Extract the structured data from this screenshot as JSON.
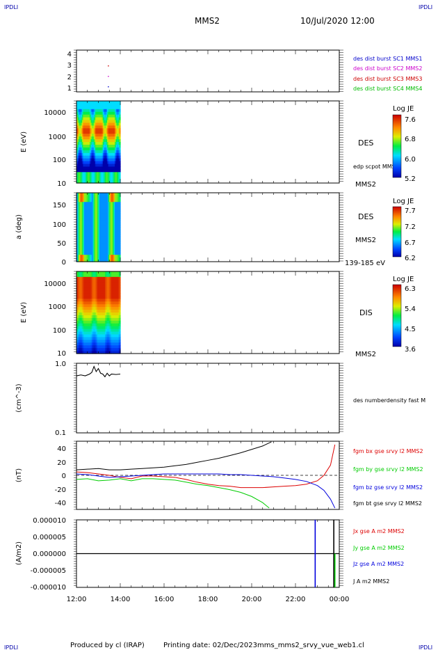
{
  "header": {
    "corner_tl": "IPDLI",
    "corner_tr": "IPDLI",
    "corner_bl": "IPDLI",
    "corner_br": "IPDLI",
    "title": "MMS2",
    "datetime": "10/Jul/2020 12:00"
  },
  "footer": {
    "produced": "Produced by cl (IRAP)",
    "printing": "Printing date: 02/Dec/2023",
    "file": "mms_mms2_srvy_vue_web1.cl"
  },
  "colors": {
    "mms1": "#0000cc",
    "mms2": "#cc00cc",
    "mms3": "#cc0000",
    "mms4": "#00bb00",
    "bx": "#dd0000",
    "by": "#00cc00",
    "bz": "#0000dd",
    "bt": "#000000"
  },
  "chart_data": [
    {
      "type": "scatter",
      "panel": "burst-availability",
      "ylim": [
        0.5,
        4.5
      ],
      "yticks": [
        "4",
        "3",
        "2",
        "1"
      ],
      "legend": [
        {
          "text": "des dist burst SC1 MMS1",
          "color": "#0000cc"
        },
        {
          "text": "des dist burst SC2 MMS2",
          "color": "#cc00cc"
        },
        {
          "text": "des dist burst SC3 MMS3",
          "color": "#cc0000"
        },
        {
          "text": "des dist burst SC4 MMS4",
          "color": "#00bb00"
        }
      ],
      "points": [
        {
          "x": 13.45,
          "y": 1
        },
        {
          "x": 13.45,
          "y": 2
        },
        {
          "x": 13.45,
          "y": 3
        }
      ]
    },
    {
      "type": "heatmap",
      "panel": "des-energy",
      "ylabel": "E (eV)",
      "yscale": "log",
      "ylim": [
        10,
        30000
      ],
      "yticks": [
        "10000",
        "1000",
        "100",
        "10"
      ],
      "data_xrange": [
        12.0,
        14.0
      ],
      "species": "DES",
      "extra_label": "edp scpot MMS2",
      "spacecraft": "MMS2",
      "colorbar": {
        "label": "Log JE",
        "ticks": [
          "7.6",
          "6.8",
          "6.0",
          "5.2"
        ]
      }
    },
    {
      "type": "heatmap",
      "panel": "des-pitch",
      "ylabel": "a (deg)",
      "ylim": [
        0,
        180
      ],
      "yticks": [
        "150",
        "100",
        "50",
        "0"
      ],
      "data_xrange": [
        12.0,
        14.0
      ],
      "species": "DES",
      "spacecraft": "MMS2",
      "energy_range": "139-185 eV",
      "colorbar": {
        "label": "Log JE",
        "ticks": [
          "7.7",
          "7.2",
          "6.7",
          "6.2"
        ]
      }
    },
    {
      "type": "heatmap",
      "panel": "dis-energy",
      "ylabel": "E (eV)",
      "yscale": "log",
      "ylim": [
        10,
        30000
      ],
      "yticks": [
        "10000",
        "1000",
        "100",
        "10"
      ],
      "data_xrange": [
        12.0,
        14.0
      ],
      "species": "DIS",
      "spacecraft": "MMS2",
      "colorbar": {
        "label": "Log JE",
        "ticks": [
          "6.3",
          "5.4",
          "4.5",
          "3.6"
        ]
      }
    },
    {
      "type": "line",
      "panel": "density",
      "ylabel": "(cm^-3)",
      "yscale": "log",
      "ylim": [
        0.1,
        1.0
      ],
      "yticks": [
        "1.0",
        "0.1"
      ],
      "series": [
        {
          "name": "des numberdensity fast M",
          "color": "#000000",
          "x": [
            12.0,
            12.2,
            12.4,
            12.6,
            12.7,
            12.8,
            12.9,
            13.0,
            13.1,
            13.2,
            13.3,
            13.4,
            13.5,
            13.6,
            13.8,
            14.0
          ],
          "y": [
            0.66,
            0.68,
            0.66,
            0.7,
            0.74,
            0.9,
            0.76,
            0.84,
            0.72,
            0.7,
            0.64,
            0.72,
            0.66,
            0.7,
            0.69,
            0.7
          ]
        }
      ]
    },
    {
      "type": "line",
      "panel": "magnetic-field",
      "ylabel": "(nT)",
      "ylim": [
        -50,
        50
      ],
      "yticks": [
        "40",
        "20",
        "0",
        "-20",
        "-40"
      ],
      "series": [
        {
          "name": "fgm bx gse srvy l2 MMS2",
          "color": "#dd0000",
          "x": [
            12,
            12.5,
            13,
            13.5,
            14,
            14.5,
            15,
            15.5,
            16,
            16.5,
            17,
            17.5,
            18,
            18.5,
            19,
            19.5,
            20,
            20.5,
            21,
            21.5,
            22,
            22.5,
            23,
            23.3,
            23.6,
            23.8
          ],
          "y": [
            5,
            4,
            2,
            0,
            -3,
            -5,
            -1,
            -1,
            -2,
            -3,
            -6,
            -10,
            -13,
            -15,
            -16,
            -18,
            -18,
            -18,
            -17,
            -16,
            -15,
            -13,
            -8,
            0,
            15,
            45
          ]
        },
        {
          "name": "fgm by gse srvy l2 MMS2",
          "color": "#00cc00",
          "x": [
            12,
            12.5,
            13,
            13.5,
            14,
            14.5,
            15,
            15.5,
            16,
            16.5,
            17,
            17.5,
            18,
            18.5,
            19,
            19.5,
            20,
            20.5,
            20.8
          ],
          "y": [
            -6,
            -5,
            -8,
            -7,
            -5,
            -8,
            -5,
            -5,
            -6,
            -7,
            -10,
            -13,
            -15,
            -18,
            -21,
            -25,
            -31,
            -40,
            -48
          ]
        },
        {
          "name": "fgm bz gse srvy l2 MMS2",
          "color": "#0000dd",
          "x": [
            12,
            12.5,
            13,
            13.5,
            14,
            14.5,
            15,
            15.5,
            16,
            16.5,
            17,
            17.5,
            18,
            18.5,
            19,
            19.5,
            20,
            20.5,
            21,
            21.5,
            22,
            22.5,
            23,
            23.3,
            23.6,
            23.8
          ],
          "y": [
            2,
            1,
            -1,
            -3,
            -2,
            -1,
            0,
            1,
            2,
            2,
            2,
            2,
            2,
            2,
            1,
            1,
            0,
            -1,
            -2,
            -4,
            -6,
            -9,
            -15,
            -22,
            -35,
            -48
          ]
        },
        {
          "name": "fgm bt gse srvy l2 MMS2",
          "color": "#000000",
          "x": [
            12,
            12.5,
            13,
            13.5,
            14,
            14.5,
            15,
            15.5,
            16,
            16.5,
            17,
            17.5,
            18,
            18.5,
            19,
            19.5,
            20,
            20.5,
            20.9
          ],
          "y": [
            8,
            9,
            10,
            8,
            8,
            9,
            10,
            11,
            12,
            14,
            16,
            19,
            22,
            25,
            29,
            33,
            38,
            43,
            49
          ]
        }
      ]
    },
    {
      "type": "line",
      "panel": "current-density",
      "ylabel": "(A/m2)",
      "ylim": [
        -1e-05,
        1e-05
      ],
      "yticks": [
        "0.000010",
        "0.000005",
        "0.000000",
        "-0.000005",
        "-0.000010"
      ],
      "series": [
        {
          "name": "Jx gse A m2 MMS2",
          "color": "#dd0000"
        },
        {
          "name": "Jy gse A m2 MMS2",
          "color": "#00cc00"
        },
        {
          "name": "Jz gse A m2 MMS2",
          "color": "#0000dd"
        },
        {
          "name": "J A m2 MMS2",
          "color": "#000000"
        }
      ],
      "spikes": [
        {
          "x": 22.9,
          "ymax": 1e-05,
          "ymin": -1e-05,
          "color": "#0000dd"
        },
        {
          "x": 23.75,
          "ymax": 1e-05,
          "ymin": -1e-05,
          "color": "#000000"
        },
        {
          "x": 23.8,
          "ymin": -1e-05,
          "color": "#00cc00"
        }
      ]
    }
  ],
  "xaxis": {
    "ticks": [
      "12:00",
      "14:00",
      "16:00",
      "18:00",
      "20:00",
      "22:00",
      "00:00"
    ],
    "tick_hours": [
      12,
      14,
      16,
      18,
      20,
      22,
      24
    ]
  }
}
